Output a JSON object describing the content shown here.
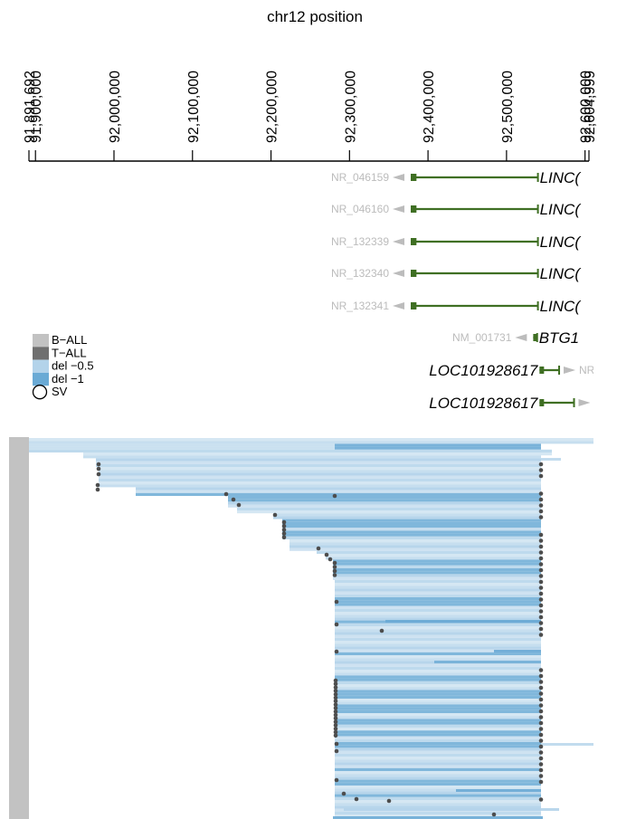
{
  "title": "chr12 position",
  "axis": {
    "min": 91891692,
    "max": 92604999,
    "ticks": [
      {
        "value": 91891692,
        "label": "91,891,692"
      },
      {
        "value": 91900000,
        "label": "91,900,000"
      },
      {
        "value": 92000000,
        "label": "92,000,000"
      },
      {
        "value": 92100000,
        "label": "92,100,000"
      },
      {
        "value": 92200000,
        "label": "92,200,000"
      },
      {
        "value": 92300000,
        "label": "92,300,000"
      },
      {
        "value": 92400000,
        "label": "92,400,000"
      },
      {
        "value": 92500000,
        "label": "92,500,000"
      },
      {
        "value": 92600000,
        "label": "92,600,000"
      },
      {
        "value": 92604999,
        "label": "92,604,999"
      }
    ]
  },
  "tracks": [
    {
      "id": "NR_046159",
      "gene": "LINC(",
      "start": 92378000,
      "end": 92540000,
      "strand": "-",
      "color": "#3f6f23"
    },
    {
      "id": "NR_046160",
      "gene": "LINC(",
      "start": 92378000,
      "end": 92540000,
      "strand": "-",
      "color": "#3f6f23"
    },
    {
      "id": "NR_132339",
      "gene": "LINC(",
      "start": 92378000,
      "end": 92540000,
      "strand": "-",
      "color": "#3f6f23"
    },
    {
      "id": "NR_132340",
      "gene": "LINC(",
      "start": 92378000,
      "end": 92540000,
      "strand": "-",
      "color": "#3f6f23"
    },
    {
      "id": "NR_132341",
      "gene": "LINC(",
      "start": 92378000,
      "end": 92540000,
      "strand": "-",
      "color": "#3f6f23"
    },
    {
      "id": "NM_001731",
      "gene": "BTG1",
      "start": 92534000,
      "end": 92539000,
      "strand": "-",
      "color": "#3f6f23"
    },
    {
      "id": "NR_",
      "gene": "LOC101928617",
      "start": 92542000,
      "end": 92567000,
      "strand": "+",
      "color": "#3f6f23"
    },
    {
      "id": "",
      "gene": "LOC101928617",
      "start": 92542000,
      "end": 92586000,
      "strand": "+",
      "color": "#3f6f23"
    }
  ],
  "legend": [
    {
      "label": "B−ALL",
      "color": "#c2c2c2",
      "kind": "box"
    },
    {
      "label": "T−ALL",
      "color": "#6f6f6f",
      "kind": "box"
    },
    {
      "label": "del −0.5",
      "color": "#b3d3ea",
      "kind": "box"
    },
    {
      "label": "del −1",
      "color": "#6aaad5",
      "kind": "box"
    },
    {
      "label": "SV",
      "color": "#000000",
      "kind": "circle"
    }
  ],
  "colors": {
    "del_half": "#b3d3ea",
    "del_full": "#6aaad5",
    "b_all": "#c2c2c2",
    "sv_point": "#4d4d4d",
    "gene_model": "#3f6f23",
    "tx_id": "#bcbcbc"
  },
  "group_bar": {
    "label": "B−ALL",
    "color": "#c2c2c2"
  }
}
